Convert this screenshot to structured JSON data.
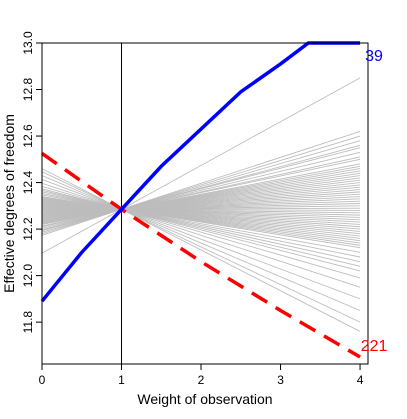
{
  "chart_data": {
    "type": "line",
    "xlabel": "Weight of observation",
    "ylabel": "Effective degrees of freedom",
    "xlim": [
      0,
      4.1
    ],
    "ylim": [
      11.62,
      13.0
    ],
    "x_ticks": [
      0,
      1,
      2,
      3,
      4
    ],
    "x_tick_labels": [
      "0",
      "1",
      "2",
      "3",
      "4"
    ],
    "y_ticks": [
      11.8,
      12.0,
      12.2,
      12.4,
      12.6,
      12.8,
      13.0
    ],
    "y_tick_labels": [
      "11.8",
      "12.0",
      "12.2",
      "12.4",
      "12.6",
      "12.8",
      "13.0"
    ],
    "reference_x": 1,
    "grid": false,
    "pivot": {
      "x": 1,
      "y": 12.285
    },
    "x_range": [
      0,
      4
    ],
    "highlighted_series": [
      {
        "label": "39",
        "color": "#0000ff",
        "style": "solid",
        "points": [
          [
            0,
            11.89
          ],
          [
            0.5,
            12.1
          ],
          [
            1,
            12.285
          ],
          [
            1.5,
            12.47
          ],
          [
            2,
            12.63
          ],
          [
            2.5,
            12.79
          ],
          [
            3,
            12.91
          ],
          [
            3.35,
            13.0
          ],
          [
            4,
            13.0
          ]
        ]
      },
      {
        "label": "221",
        "color": "#ff0000",
        "style": "dashed",
        "points": [
          [
            0,
            12.525
          ],
          [
            1,
            12.285
          ],
          [
            2,
            12.06
          ],
          [
            3,
            11.85
          ],
          [
            4,
            11.65
          ]
        ]
      }
    ],
    "background_series": {
      "color": "#bdbdbd",
      "end_values_at_x4": [
        12.85,
        12.62,
        12.6,
        12.58,
        12.56,
        12.55,
        12.53,
        12.51,
        12.5,
        12.48,
        12.47,
        12.46,
        12.45,
        12.44,
        12.43,
        12.42,
        12.41,
        12.4,
        12.39,
        12.38,
        12.37,
        12.36,
        12.35,
        12.34,
        12.33,
        12.32,
        12.31,
        12.3,
        12.29,
        12.28,
        12.27,
        12.26,
        12.25,
        12.24,
        12.23,
        12.22,
        12.21,
        12.2,
        12.19,
        12.18,
        12.17,
        12.16,
        12.15,
        12.14,
        12.13,
        12.12,
        12.1,
        12.08,
        12.06,
        12.04,
        12.02,
        11.99,
        11.95,
        11.9,
        11.85,
        11.8,
        11.76
      ]
    }
  }
}
